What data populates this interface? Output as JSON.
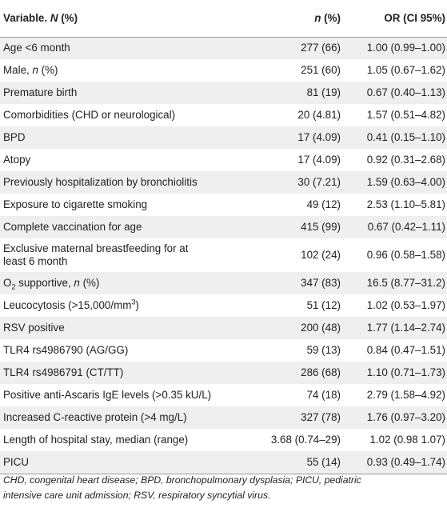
{
  "header": {
    "variable_prefix": "Variable. ",
    "variable_n": "N",
    "variable_suffix": " (%)",
    "n_italic": "n",
    "n_suffix": " (%)",
    "or_label": "OR (CI 95%)"
  },
  "rows": [
    {
      "var": "Age <6 month",
      "n": "277 (66)",
      "or": "1.00 (0.99–1.00)"
    },
    {
      "var_pre": "Male, ",
      "var_ital": "n",
      "var_post": " (%)",
      "n": "251 (60)",
      "or": "1.05 (0.67–1.62)"
    },
    {
      "var": "Premature birth",
      "n": "81 (19)",
      "or": "0.67 (0.40–1.13)"
    },
    {
      "var": "Comorbidities (CHD or neurological)",
      "n": "20 (4.81)",
      "or": "1.57 (0.51–4.82)"
    },
    {
      "var": "BPD",
      "n": "17 (4.09)",
      "or": "0.41 (0.15–1.10)"
    },
    {
      "var": "Atopy",
      "n": "17 (4.09)",
      "or": "0.92 (0.31–2.68)"
    },
    {
      "var": "Previously hospitalization by bronchiolitis",
      "n": "30 (7.21)",
      "or": "1.59 (0.63–4.00)"
    },
    {
      "var": "Exposure to cigarette smoking",
      "n": "49 (12)",
      "or": "2.53 (1.10–5.81)"
    },
    {
      "var": "Complete vaccination for age",
      "n": "415 (99)",
      "or": "0.67 (0.42–1.11)"
    },
    {
      "var_line1": "Exclusive maternal breastfeeding for at",
      "var_line2": "least 6 month",
      "n": "102 (24)",
      "or": "0.96 (0.58–1.58)"
    },
    {
      "var_o": "O",
      "var_sub": "2",
      "var_post": " supportive, ",
      "var_ital": "n",
      "var_end": " (%)",
      "n": "347 (83)",
      "or": "16.5 (8.77–31.2)"
    },
    {
      "var_pre": "Leucocytosis (>15,000/mm",
      "var_sup": "3",
      "var_post": ")",
      "n": "51 (12)",
      "or": "1.02 (0.53–1.97)"
    },
    {
      "var": "RSV positive",
      "n": "200 (48)",
      "or": "1.77 (1.14–2.74)"
    },
    {
      "var": "TLR4 rs4986790 (AG/GG)",
      "n": "59 (13)",
      "or": "0.84 (0.47–1.51)"
    },
    {
      "var": "TLR4 rs4986791 (CT/TT)",
      "n": "286 (68)",
      "or": "1.10 (0.71–1.73)"
    },
    {
      "var": "Positive anti-Ascaris IgE levels (>0.35 kU/L)",
      "n": "74 (18)",
      "or": "2.79 (1.58–4.92)"
    },
    {
      "var": "Increased C-reactive protein (>4 mg/L)",
      "n": "327 (78)",
      "or": "1.76 (0.97–3.20)"
    },
    {
      "var": "Length of hospital stay, median (range)",
      "n": "3.68 (0.74–29)",
      "or": "1.02 (0.98 1.07)"
    },
    {
      "var": "PICU",
      "n": "55 (14)",
      "or": "0.93 (0.49–1.74)"
    }
  ],
  "footnote": {
    "line1": "CHD, congenital heart disease; BPD, bronchopulmonary dysplasia; PICU, pediatric",
    "line2": "intensive care unit admission; RSV, respiratory syncytial virus."
  }
}
